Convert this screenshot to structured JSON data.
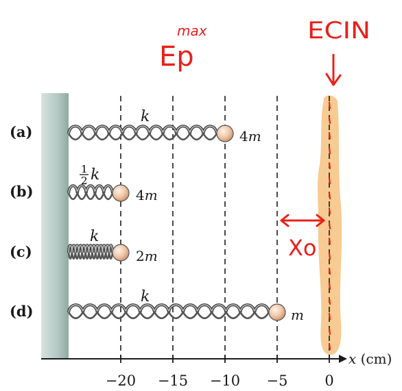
{
  "axis": {
    "label_var": "x",
    "label_unit": " (cm)",
    "ticks": [
      "−20",
      "−15",
      "−10",
      "−5",
      "0"
    ],
    "tick_values": [
      -20,
      -15,
      -10,
      -5,
      0
    ]
  },
  "rows": [
    {
      "label": "(a)",
      "spring": "k",
      "mass": "4",
      "mass_unit": "m",
      "position": -10,
      "coils": 11
    },
    {
      "label": "(b)",
      "spring_frac_num": "1",
      "spring_frac_den": "2",
      "spring": "k",
      "mass": "4",
      "mass_unit": "m",
      "position": -20,
      "coils": 5
    },
    {
      "label": "(c)",
      "spring": "k",
      "mass": "2",
      "mass_unit": "m",
      "position": -20,
      "coils": 13
    },
    {
      "label": "(d)",
      "spring": "k",
      "mass": "",
      "mass_unit": "m",
      "position": -5,
      "coils": 14
    }
  ],
  "annotations": {
    "ep_max_super": "max",
    "ep_label": "Ep",
    "ekin_label": "ECIN",
    "x0_label": "Xo"
  },
  "colors": {
    "ink": "#e8201a",
    "highlight": "#f6c27f",
    "wall": "#a9c1bb",
    "mass_fill": "#efc3a3"
  }
}
